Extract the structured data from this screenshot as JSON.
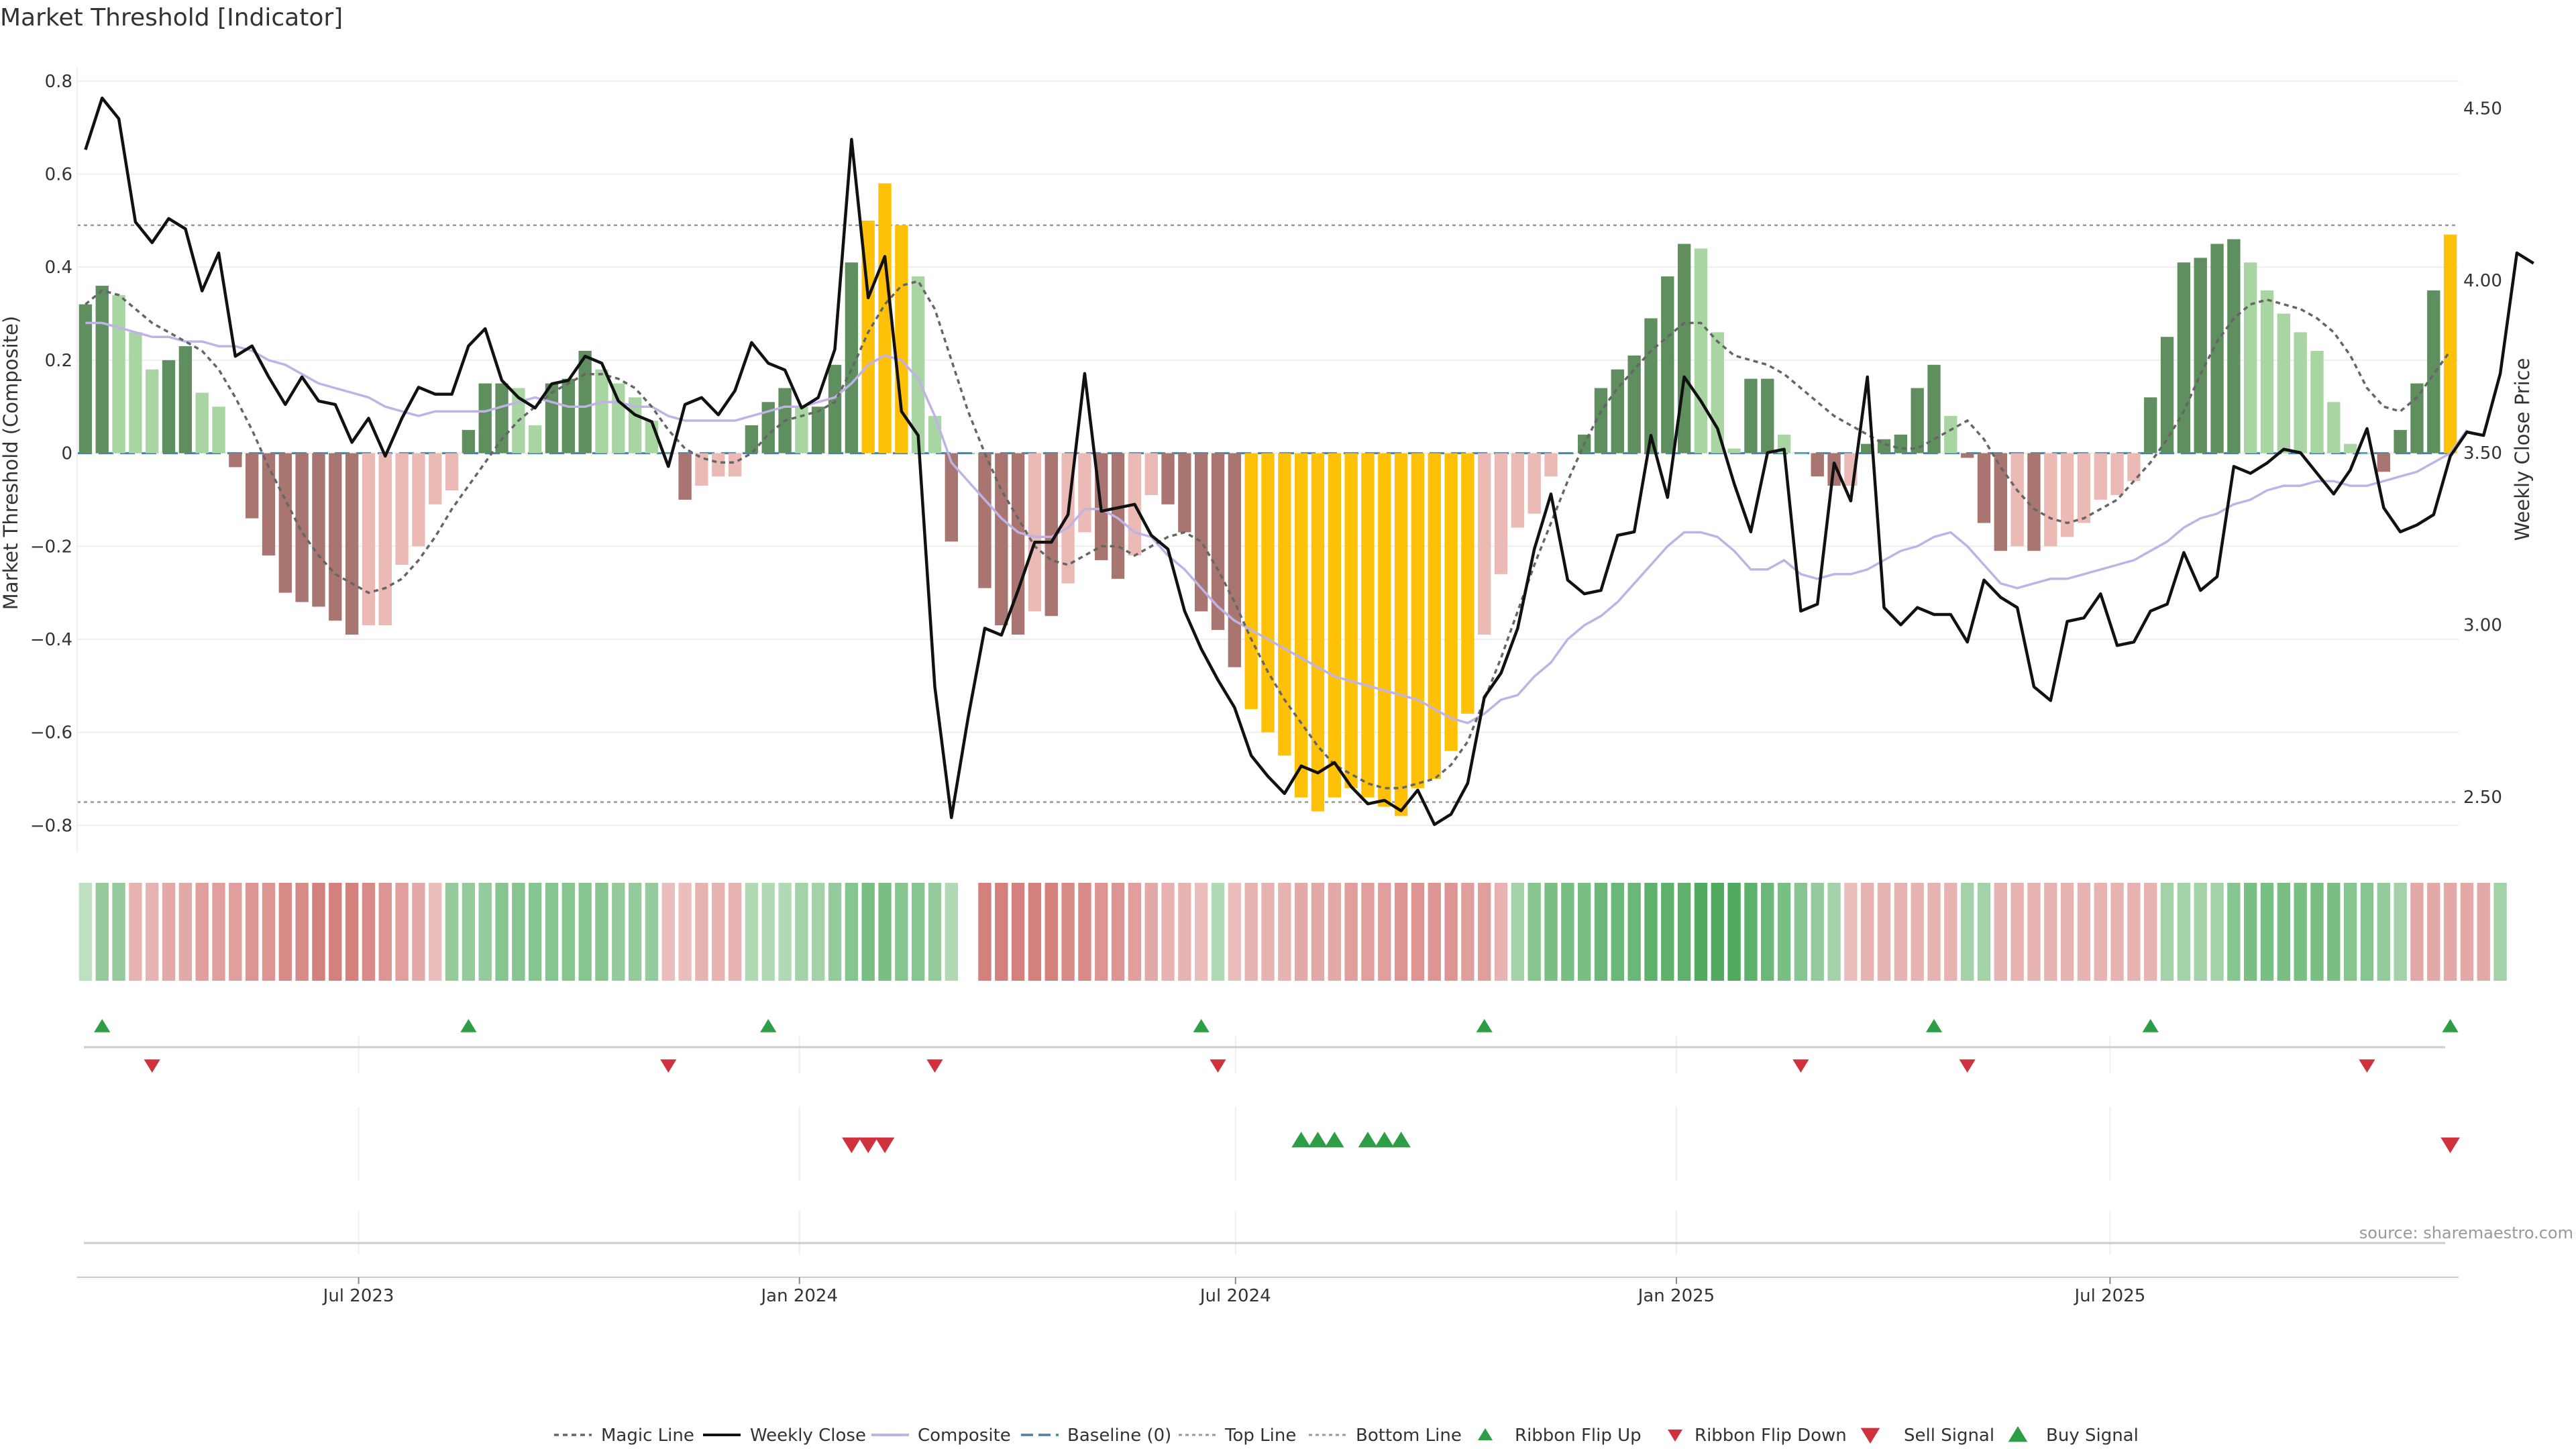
{
  "title": "Market Threshold [Indicator]",
  "source": "source: sharemaestro.com",
  "chart_data": {
    "type": "bar",
    "x_axis": {
      "start_date": "2023-03-09",
      "end_date": "2025-11-20",
      "tick_labels": [
        "Jul 2023",
        "Jan 2024",
        "Jul 2024",
        "Jan 2025",
        "Jul 2025"
      ],
      "tick_dates": [
        "2023-07-01",
        "2024-01-01",
        "2024-07-01",
        "2025-01-01",
        "2025-07-01"
      ]
    },
    "y_left": {
      "label": "Market Threshold (Composite)",
      "ylim": [
        -0.85,
        0.83
      ],
      "ticks": [
        0.8,
        0.6,
        0.4,
        0.2,
        0,
        -0.2,
        -0.4,
        -0.6,
        -0.8
      ],
      "tick_labels": [
        "0.8",
        "0.6",
        "0.4",
        "0.2",
        "0",
        "−0.2",
        "−0.4",
        "−0.6",
        "−0.8"
      ]
    },
    "y_right": {
      "label": "Weekly Close Price",
      "ylim": [
        2.35,
        4.62
      ],
      "ticks": [
        4.5,
        4.0,
        3.5,
        3.0,
        2.5
      ],
      "tick_labels": [
        "4.50",
        "4.00",
        "3.50",
        "3.00",
        "2.50"
      ]
    },
    "top_line": 0.49,
    "bottom_line": -0.75,
    "composite_bars": [
      0.32,
      0.36,
      0.34,
      0.26,
      0.18,
      0.2,
      0.23,
      0.13,
      0.1,
      -0.03,
      -0.14,
      -0.22,
      -0.3,
      -0.32,
      -0.33,
      -0.36,
      -0.39,
      -0.37,
      -0.37,
      -0.24,
      -0.2,
      -0.11,
      -0.08,
      0.05,
      0.15,
      0.15,
      0.14,
      0.06,
      0.15,
      0.16,
      0.22,
      0.18,
      0.15,
      0.12,
      0.07,
      0.0,
      -0.1,
      -0.07,
      -0.05,
      -0.05,
      0.06,
      0.11,
      0.14,
      0.1,
      0.1,
      0.19,
      0.41,
      0.5,
      0.58,
      0.49,
      0.38,
      0.08,
      -0.19,
      0.0,
      -0.29,
      -0.37,
      -0.39,
      -0.34,
      -0.35,
      -0.28,
      -0.17,
      -0.23,
      -0.27,
      -0.22,
      -0.09,
      -0.11,
      -0.17,
      -0.34,
      -0.38,
      -0.46,
      -0.55,
      -0.6,
      -0.65,
      -0.74,
      -0.77,
      -0.74,
      -0.72,
      -0.74,
      -0.76,
      -0.78,
      -0.72,
      -0.7,
      -0.64,
      -0.56,
      -0.39,
      -0.26,
      -0.16,
      -0.13,
      -0.05,
      0.0,
      0.04,
      0.14,
      0.18,
      0.21,
      0.29,
      0.38,
      0.45,
      0.44,
      0.26,
      0.01,
      0.16,
      0.16,
      0.04,
      0.0,
      -0.05,
      -0.07,
      -0.07,
      0.02,
      0.03,
      0.04,
      0.14,
      0.19,
      0.08,
      -0.01,
      -0.15,
      -0.21,
      -0.2,
      -0.21,
      -0.2,
      -0.18,
      -0.15,
      -0.1,
      -0.09,
      -0.06,
      0.12,
      0.25,
      0.41,
      0.42,
      0.45,
      0.46,
      0.41,
      0.35,
      0.3,
      0.26,
      0.22,
      0.11,
      0.02,
      0.0,
      -0.04,
      0.05,
      0.15,
      0.35,
      0.47
    ],
    "weekly_close": [
      4.38,
      4.53,
      4.47,
      4.17,
      4.11,
      4.18,
      4.15,
      3.97,
      4.08,
      3.78,
      3.81,
      3.72,
      3.64,
      3.72,
      3.65,
      3.64,
      3.53,
      3.6,
      3.49,
      3.6,
      3.69,
      3.67,
      3.67,
      3.81,
      3.86,
      3.71,
      3.66,
      3.63,
      3.7,
      3.71,
      3.78,
      3.76,
      3.65,
      3.61,
      3.59,
      3.46,
      3.64,
      3.66,
      3.61,
      3.68,
      3.82,
      3.76,
      3.74,
      3.63,
      3.66,
      3.8,
      4.41,
      3.95,
      4.07,
      3.62,
      3.55,
      2.82,
      2.44,
      2.73,
      2.99,
      2.97,
      3.1,
      3.24,
      3.24,
      3.32,
      3.73,
      3.33,
      3.34,
      3.35,
      3.26,
      3.22,
      3.04,
      2.93,
      2.84,
      2.76,
      2.62,
      2.56,
      2.51,
      2.59,
      2.57,
      2.6,
      2.53,
      2.48,
      2.49,
      2.46,
      2.52,
      2.42,
      2.45,
      2.54,
      2.79,
      2.86,
      2.99,
      3.22,
      3.38,
      3.13,
      3.09,
      3.1,
      3.26,
      3.27,
      3.55,
      3.37,
      3.72,
      3.65,
      3.57,
      3.41,
      3.27,
      3.5,
      3.51,
      3.04,
      3.06,
      3.47,
      3.36,
      3.72,
      3.05,
      3.0,
      3.05,
      3.03,
      3.03,
      2.95,
      3.13,
      3.08,
      3.05,
      2.82,
      2.78,
      3.01,
      3.02,
      3.09,
      2.94,
      2.95,
      3.04,
      3.06,
      3.21,
      3.1,
      3.14,
      3.46,
      3.44,
      3.47,
      3.51,
      3.5,
      3.44,
      3.38,
      3.45,
      3.57,
      3.34,
      3.27,
      3.29,
      3.32,
      3.49,
      3.56,
      3.55,
      3.73,
      4.08,
      4.05
    ],
    "magic_line_composite": [
      0.32,
      0.35,
      0.34,
      0.31,
      0.28,
      0.26,
      0.24,
      0.22,
      0.18,
      0.12,
      0.05,
      -0.03,
      -0.1,
      -0.17,
      -0.22,
      -0.26,
      -0.28,
      -0.3,
      -0.29,
      -0.27,
      -0.23,
      -0.18,
      -0.12,
      -0.07,
      -0.02,
      0.03,
      0.07,
      0.1,
      0.13,
      0.15,
      0.17,
      0.17,
      0.16,
      0.14,
      0.1,
      0.05,
      0.01,
      -0.01,
      -0.02,
      -0.02,
      0.0,
      0.04,
      0.07,
      0.08,
      0.09,
      0.11,
      0.18,
      0.26,
      0.32,
      0.36,
      0.37,
      0.31,
      0.2,
      0.09,
      0.0,
      -0.08,
      -0.14,
      -0.2,
      -0.23,
      -0.24,
      -0.22,
      -0.2,
      -0.2,
      -0.22,
      -0.2,
      -0.18,
      -0.17,
      -0.19,
      -0.25,
      -0.32,
      -0.4,
      -0.47,
      -0.53,
      -0.58,
      -0.63,
      -0.67,
      -0.69,
      -0.71,
      -0.72,
      -0.72,
      -0.71,
      -0.7,
      -0.67,
      -0.62,
      -0.53,
      -0.44,
      -0.34,
      -0.24,
      -0.15,
      -0.06,
      0.02,
      0.09,
      0.14,
      0.18,
      0.22,
      0.25,
      0.28,
      0.28,
      0.24,
      0.21,
      0.2,
      0.19,
      0.17,
      0.14,
      0.11,
      0.08,
      0.06,
      0.04,
      0.02,
      0.01,
      0.01,
      0.03,
      0.05,
      0.07,
      0.03,
      -0.03,
      -0.08,
      -0.12,
      -0.14,
      -0.15,
      -0.14,
      -0.12,
      -0.1,
      -0.06,
      -0.02,
      0.03,
      0.09,
      0.17,
      0.24,
      0.29,
      0.32,
      0.33,
      0.32,
      0.31,
      0.29,
      0.26,
      0.21,
      0.14,
      0.1,
      0.09,
      0.12,
      0.17,
      0.22
    ],
    "composite_smooth": [
      0.28,
      0.28,
      0.27,
      0.26,
      0.25,
      0.25,
      0.24,
      0.24,
      0.23,
      0.23,
      0.22,
      0.2,
      0.19,
      0.17,
      0.15,
      0.14,
      0.13,
      0.12,
      0.1,
      0.09,
      0.08,
      0.09,
      0.09,
      0.09,
      0.09,
      0.1,
      0.11,
      0.12,
      0.11,
      0.1,
      0.1,
      0.11,
      0.11,
      0.1,
      0.1,
      0.08,
      0.07,
      0.07,
      0.07,
      0.07,
      0.08,
      0.09,
      0.1,
      0.1,
      0.11,
      0.12,
      0.15,
      0.19,
      0.21,
      0.2,
      0.16,
      0.08,
      -0.02,
      -0.06,
      -0.1,
      -0.14,
      -0.17,
      -0.18,
      -0.18,
      -0.16,
      -0.12,
      -0.12,
      -0.14,
      -0.17,
      -0.18,
      -0.22,
      -0.25,
      -0.29,
      -0.33,
      -0.36,
      -0.38,
      -0.4,
      -0.42,
      -0.44,
      -0.46,
      -0.48,
      -0.49,
      -0.5,
      -0.51,
      -0.52,
      -0.53,
      -0.55,
      -0.57,
      -0.58,
      -0.56,
      -0.53,
      -0.52,
      -0.48,
      -0.45,
      -0.4,
      -0.37,
      -0.35,
      -0.32,
      -0.28,
      -0.24,
      -0.2,
      -0.17,
      -0.17,
      -0.18,
      -0.21,
      -0.25,
      -0.25,
      -0.23,
      -0.26,
      -0.27,
      -0.26,
      -0.26,
      -0.25,
      -0.23,
      -0.21,
      -0.2,
      -0.18,
      -0.17,
      -0.2,
      -0.24,
      -0.28,
      -0.29,
      -0.28,
      -0.27,
      -0.27,
      -0.26,
      -0.25,
      -0.24,
      -0.23,
      -0.21,
      -0.19,
      -0.16,
      -0.14,
      -0.13,
      -0.11,
      -0.1,
      -0.08,
      -0.07,
      -0.07,
      -0.06,
      -0.06,
      -0.07,
      -0.07,
      -0.06,
      -0.05,
      -0.04,
      -0.02,
      0.0,
      0.05
    ],
    "ribbon": [
      0.1,
      0.4,
      0.4,
      -0.3,
      -0.3,
      -0.4,
      -0.4,
      -0.5,
      -0.5,
      -0.5,
      -0.6,
      -0.6,
      -0.7,
      -0.7,
      -0.8,
      -0.8,
      -0.8,
      -0.7,
      -0.6,
      -0.5,
      -0.4,
      -0.2,
      0.4,
      0.4,
      0.4,
      0.5,
      0.5,
      0.5,
      0.5,
      0.5,
      0.5,
      0.5,
      0.4,
      0.4,
      0.4,
      -0.2,
      -0.2,
      -0.3,
      -0.3,
      -0.3,
      0.2,
      0.2,
      0.2,
      0.3,
      0.3,
      0.4,
      0.5,
      0.6,
      0.6,
      0.5,
      0.5,
      0.4,
      0.2,
      null,
      -0.8,
      -0.8,
      -0.8,
      -0.8,
      -0.8,
      -0.7,
      -0.7,
      -0.6,
      -0.6,
      -0.5,
      -0.4,
      -0.3,
      -0.3,
      -0.2,
      0.2,
      -0.2,
      -0.3,
      -0.3,
      -0.3,
      -0.4,
      -0.4,
      -0.4,
      -0.5,
      -0.5,
      -0.5,
      -0.6,
      -0.6,
      -0.6,
      -0.6,
      -0.5,
      -0.5,
      -0.3,
      0.3,
      0.5,
      0.6,
      0.6,
      0.6,
      0.7,
      0.7,
      0.7,
      0.8,
      0.8,
      0.8,
      0.9,
      0.9,
      0.9,
      0.8,
      0.7,
      0.6,
      0.5,
      0.4,
      0.3,
      -0.2,
      -0.3,
      -0.3,
      -0.3,
      -0.3,
      -0.3,
      -0.3,
      0.3,
      0.3,
      -0.3,
      -0.3,
      -0.3,
      -0.3,
      -0.3,
      -0.3,
      -0.3,
      -0.3,
      -0.3,
      -0.3,
      0.3,
      0.3,
      0.3,
      0.3,
      0.5,
      0.6,
      0.6,
      0.6,
      0.6,
      0.6,
      0.6,
      0.5,
      0.5,
      0.4,
      0.3,
      -0.4,
      -0.4,
      -0.4,
      -0.4,
      -0.4,
      0.3
    ],
    "ribbon_flip_up_idx": [
      1,
      23,
      41,
      67,
      84,
      111,
      124,
      142
    ],
    "ribbon_flip_down_idx": [
      4,
      35,
      51,
      68,
      103,
      113,
      137
    ],
    "sell_signal_idx": [
      46,
      47,
      48,
      142
    ],
    "buy_signal_idx": [
      73,
      74,
      75,
      77,
      78,
      79
    ]
  },
  "legend": [
    {
      "label": "Magic Line",
      "kind": "magic"
    },
    {
      "label": "Weekly Close",
      "kind": "close"
    },
    {
      "label": "Composite",
      "kind": "composite"
    },
    {
      "label": "Baseline (0)",
      "kind": "baseline"
    },
    {
      "label": "Top Line",
      "kind": "topline"
    },
    {
      "label": "Bottom Line",
      "kind": "bottomline"
    },
    {
      "label": "Ribbon Flip Up",
      "kind": "flipup"
    },
    {
      "label": "Ribbon Flip Down",
      "kind": "flipdown"
    },
    {
      "label": "Sell Signal",
      "kind": "sell"
    },
    {
      "label": "Buy Signal",
      "kind": "buy"
    }
  ],
  "colors": {
    "pos_dark": "#5f8e5f",
    "pos_light": "#a8d5a2",
    "neg_dark": "#a87570",
    "neg_light": "#ebbab5",
    "extreme": "#ffc107",
    "close": "#111111",
    "composite": "#bfb3e6",
    "magic": "#666666",
    "baseline": "#4a7fa8",
    "green": "#2e9e46",
    "red": "#d0323d"
  }
}
